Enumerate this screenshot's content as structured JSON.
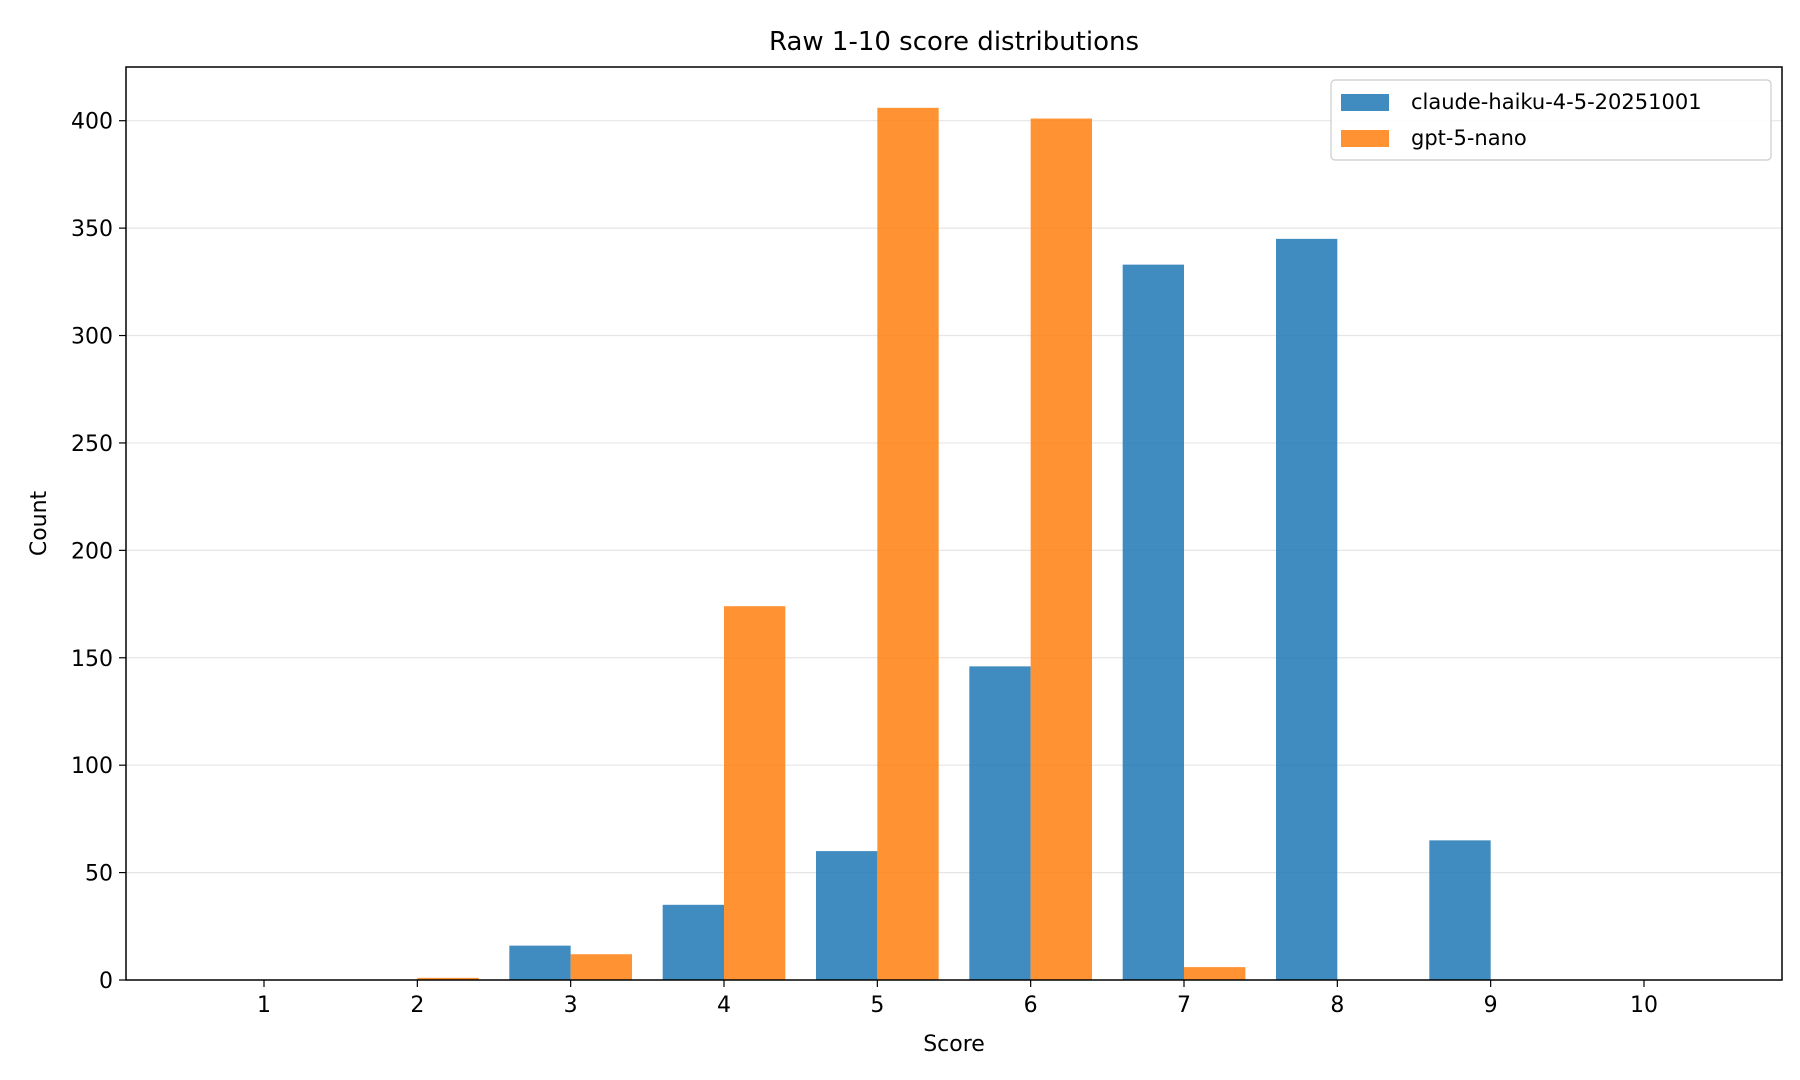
{
  "chart_data": {
    "type": "bar",
    "title": "Raw 1-10 score distributions",
    "xlabel": "Score",
    "ylabel": "Count",
    "categories": [
      "1",
      "2",
      "3",
      "4",
      "5",
      "6",
      "7",
      "8",
      "9",
      "10"
    ],
    "series": [
      {
        "name": "claude-haiku-4-5-20251001",
        "color": "#1f77b4",
        "values": [
          0,
          0,
          16,
          35,
          60,
          146,
          333,
          345,
          65,
          0
        ]
      },
      {
        "name": "gpt-5-nano",
        "color": "#ff7f0e",
        "values": [
          0,
          1,
          12,
          174,
          406,
          401,
          6,
          0,
          0,
          0
        ]
      }
    ],
    "ylim": [
      0,
      425
    ],
    "yticks": [
      0,
      50,
      100,
      150,
      200,
      250,
      300,
      350,
      400
    ],
    "grid": "horizontal",
    "legend_position": "top-right"
  }
}
